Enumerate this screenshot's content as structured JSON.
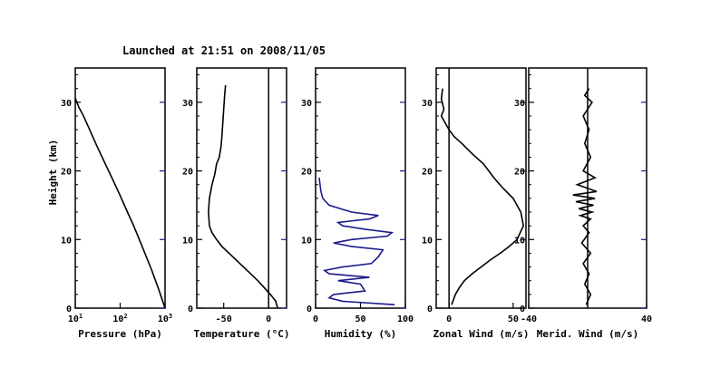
{
  "title": "Launched at 21:51 on 2008/11/05",
  "ylabel": "Height (km)",
  "chart_data": [
    {
      "type": "line",
      "xlabel": "Pressure (hPa)",
      "xscale": "log",
      "xlim": [
        10,
        1000
      ],
      "xticks": [
        {
          "v": 10,
          "base": "10",
          "exp": "1"
        },
        {
          "v": 100,
          "base": "10",
          "exp": "2"
        },
        {
          "v": 1000,
          "base": "10",
          "exp": "3"
        }
      ],
      "ylim": [
        0,
        35
      ],
      "yticks": [
        0,
        10,
        20,
        30
      ],
      "series": [
        {
          "x": [
            1000,
            700,
            500,
            300,
            200,
            150,
            100,
            70,
            50,
            30,
            20,
            15,
            12,
            10
          ],
          "y": [
            0,
            3,
            5.6,
            9.2,
            12,
            13.8,
            16.4,
            18.6,
            20.6,
            23.7,
            26.3,
            28.1,
            29.3,
            30.6
          ]
        }
      ]
    },
    {
      "type": "line",
      "xlabel": "Temperature (°C)",
      "xlim": [
        -80,
        20
      ],
      "xticks": [
        -50,
        0
      ],
      "zero_line": true,
      "ylim": [
        0,
        35
      ],
      "yticks": [
        0,
        10,
        20,
        30
      ],
      "series": [
        {
          "x": [
            10,
            8,
            2,
            -5,
            -12,
            -20,
            -28,
            -36,
            -44,
            -52,
            -58,
            -63,
            -66,
            -67,
            -66,
            -63,
            -60,
            -58,
            -55,
            -53,
            -52,
            -51,
            -50,
            -49,
            -48
          ],
          "y": [
            0,
            1,
            2,
            3,
            4,
            5,
            6,
            7,
            8,
            9,
            10,
            11,
            12,
            14,
            16,
            18,
            19.5,
            21,
            22,
            23.5,
            25,
            27,
            29,
            31,
            32.5
          ]
        }
      ]
    },
    {
      "type": "line",
      "xlabel": "Humidity (%)",
      "xlim": [
        0,
        100
      ],
      "xticks": [
        0,
        50,
        100
      ],
      "ylim": [
        0,
        35
      ],
      "yticks": [
        0,
        10,
        20,
        30
      ],
      "series": [
        {
          "x": [
            88,
            30,
            15,
            20,
            55,
            50,
            25,
            60,
            15,
            10,
            30,
            62,
            70,
            75,
            40,
            20,
            40,
            80,
            85,
            55,
            30,
            25,
            60,
            70,
            40,
            15,
            8,
            6,
            5,
            4
          ],
          "y": [
            0.5,
            1,
            1.5,
            2,
            2.5,
            3.5,
            4,
            4.5,
            5,
            5.5,
            6,
            6.5,
            7.5,
            8.5,
            9,
            9.5,
            10,
            10.5,
            11,
            11.5,
            12,
            12.5,
            13,
            13.5,
            14,
            15,
            16,
            17,
            18,
            19
          ]
        }
      ]
    },
    {
      "type": "line",
      "xlabel": "Zonal Wind (m/s)",
      "xlim": [
        -10,
        60
      ],
      "xticks": [
        0,
        50
      ],
      "zero_line": true,
      "ylim": [
        0,
        35
      ],
      "yticks": [
        0,
        10,
        20,
        30
      ],
      "series": [
        {
          "x": [
            2,
            5,
            8,
            12,
            18,
            25,
            32,
            40,
            47,
            53,
            58,
            56,
            50,
            42,
            35,
            27,
            18,
            10,
            4,
            0,
            -3,
            -6,
            -4,
            -6,
            -5
          ],
          "y": [
            0.5,
            2,
            3,
            4,
            5,
            6,
            7,
            8,
            9,
            10,
            12,
            14,
            16,
            17.5,
            19,
            21,
            22.5,
            24,
            25,
            26,
            27,
            28,
            29,
            30.5,
            32
          ]
        }
      ]
    },
    {
      "type": "line",
      "xlabel": "Merid. Wind (m/s)",
      "xlim": [
        -40,
        40
      ],
      "xticks": [
        -40,
        40
      ],
      "zero_line_at": 0,
      "ylim": [
        0,
        35
      ],
      "yticks": [
        0,
        10,
        20,
        30
      ],
      "series": [
        {
          "x": [
            -1,
            2,
            -2,
            1,
            -3,
            2,
            -4,
            1,
            -3,
            2,
            -5,
            3,
            -6,
            4,
            -8,
            5,
            -10,
            6,
            -7,
            5,
            -3,
            2,
            -2,
            1,
            -3,
            3,
            -2,
            1
          ],
          "y": [
            0.5,
            2,
            3.5,
            5,
            6.5,
            8,
            9.5,
            11,
            12,
            13,
            13.5,
            14,
            14.5,
            15,
            15.5,
            16,
            16.5,
            17,
            18,
            19,
            20,
            22,
            24,
            26,
            28,
            30,
            31,
            32
          ]
        }
      ]
    }
  ]
}
